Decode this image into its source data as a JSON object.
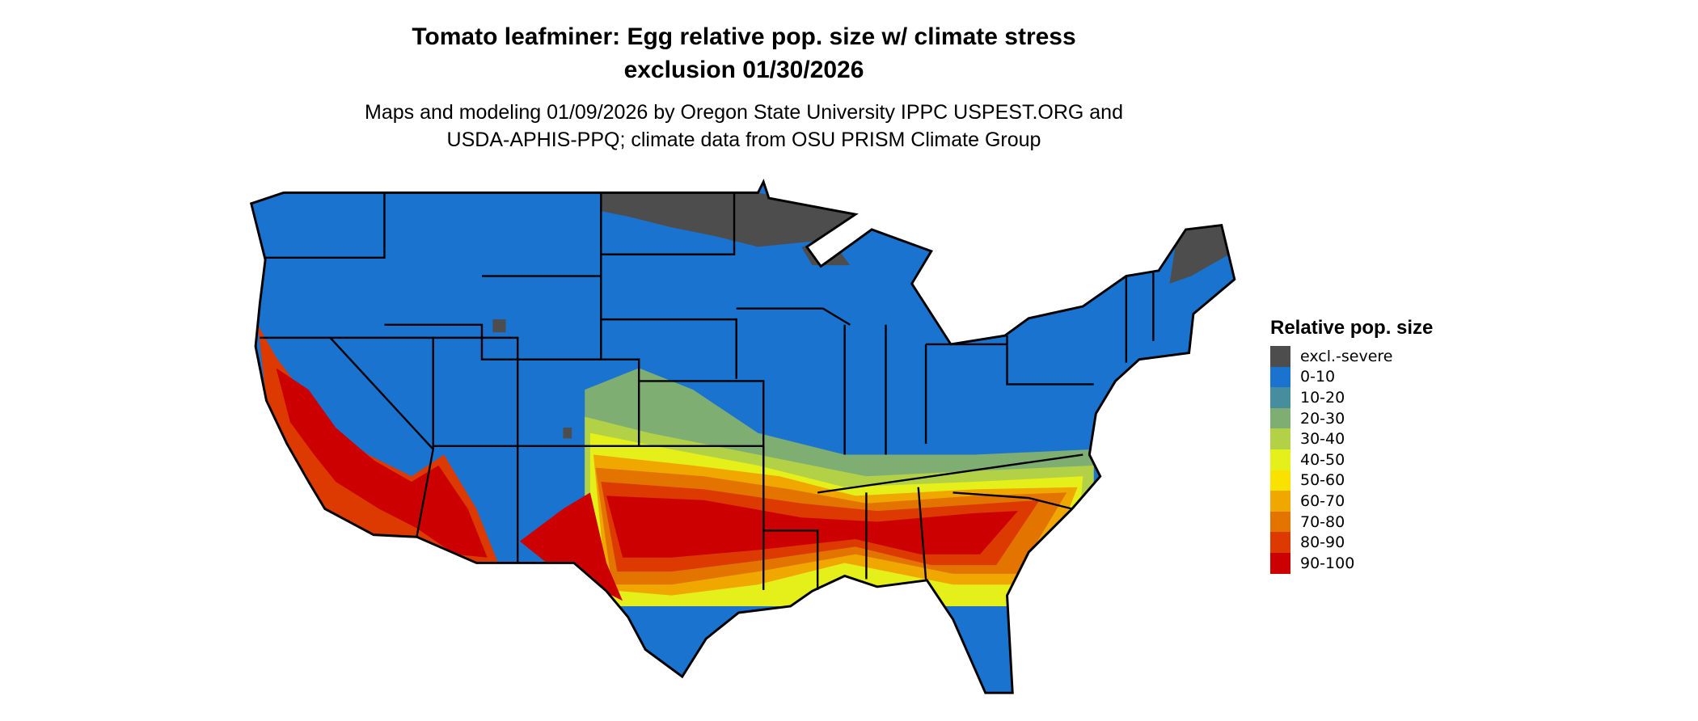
{
  "title": {
    "line1": "Tomato leafminer: Egg relative pop. size w/ climate stress",
    "line2": "exclusion 01/30/2026"
  },
  "subtitle": {
    "line1": "Maps and modeling 01/09/2026 by Oregon State University IPPC USPEST.ORG and",
    "line2": "USDA-APHIS-PPQ; climate data from OSU PRISM Climate Group"
  },
  "legend": {
    "title": "Relative pop. size",
    "items": [
      {
        "label": "excl.-severe",
        "color": "#4d4d4d"
      },
      {
        "label": "0-10",
        "color": "#1a73cf"
      },
      {
        "label": "10-20",
        "color": "#468e9e"
      },
      {
        "label": "20-30",
        "color": "#7fae73"
      },
      {
        "label": "30-40",
        "color": "#b3d147"
      },
      {
        "label": "40-50",
        "color": "#e5ef19"
      },
      {
        "label": "50-60",
        "color": "#f9e100"
      },
      {
        "label": "60-70",
        "color": "#f0a800"
      },
      {
        "label": "70-80",
        "color": "#e37400"
      },
      {
        "label": "80-90",
        "color": "#dc3a00"
      },
      {
        "label": "90-100",
        "color": "#cc0000"
      }
    ]
  }
}
